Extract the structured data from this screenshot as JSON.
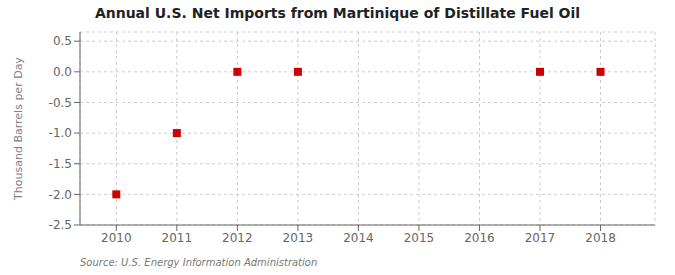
{
  "chart_data": {
    "type": "scatter",
    "title": "Annual U.S. Net Imports from Martinique of Distillate Fuel Oil",
    "y_label": "Thousand Barrels per Day",
    "source": "Source: U.S. Energy Information Administration",
    "x": [
      2010,
      2011,
      2012,
      2013,
      2014,
      2015,
      2016,
      2017,
      2018
    ],
    "values": [
      -2.0,
      -1.0,
      0.0,
      0.0,
      null,
      null,
      null,
      0.0,
      0.0
    ],
    "color": "#cc0000",
    "marker": "square",
    "xlim": [
      2009.4,
      2018.9
    ],
    "xticks": [
      2010,
      2011,
      2012,
      2013,
      2014,
      2015,
      2016,
      2017,
      2018
    ],
    "ylim": [
      -2.5,
      0.65
    ],
    "yticks": [
      -2.5,
      {
        "value": -2.0,
        "label": "-2.0"
      },
      -1.5,
      {
        "value": -1.0,
        "label": "-1.0"
      },
      -0.5,
      {
        "value": 0.0,
        "label": "0.0"
      },
      0.5
    ],
    "grid": true
  }
}
